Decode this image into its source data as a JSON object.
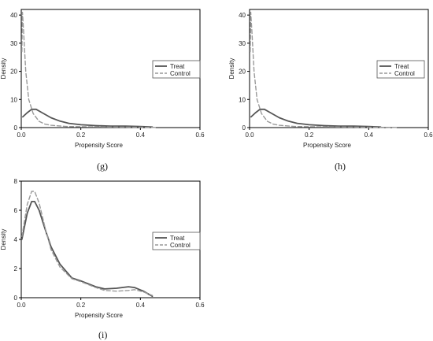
{
  "chart_data": [
    {
      "id": "g",
      "type": "line",
      "caption": "(g)",
      "xlabel": "Propensity Score",
      "ylabel": "Density",
      "xlim": [
        0,
        0.6
      ],
      "ylim": [
        0,
        42
      ],
      "xticks": [
        "0.0",
        "0.2",
        "0.4",
        "0.6"
      ],
      "yticks": [
        "0",
        "10",
        "20",
        "30",
        "40"
      ],
      "legend_position": "right",
      "series": [
        {
          "name": "Treat",
          "style": "solid",
          "color": "#555555",
          "points": [
            [
              0.005,
              3.8
            ],
            [
              0.02,
              5.3
            ],
            [
              0.035,
              6.5
            ],
            [
              0.05,
              6.5
            ],
            [
              0.07,
              5.3
            ],
            [
              0.1,
              3.5
            ],
            [
              0.13,
              2.3
            ],
            [
              0.16,
              1.5
            ],
            [
              0.2,
              1.0
            ],
            [
              0.25,
              0.7
            ],
            [
              0.3,
              0.5
            ],
            [
              0.35,
              0.5
            ],
            [
              0.4,
              0.4
            ],
            [
              0.44,
              0.2
            ]
          ]
        },
        {
          "name": "Control",
          "style": "dashed",
          "color": "#999999",
          "points": [
            [
              0.002,
              27
            ],
            [
              0.004,
              41
            ],
            [
              0.008,
              34
            ],
            [
              0.015,
              20
            ],
            [
              0.025,
              10
            ],
            [
              0.04,
              5
            ],
            [
              0.06,
              2.2
            ],
            [
              0.08,
              1.2
            ],
            [
              0.1,
              0.8
            ],
            [
              0.15,
              0.4
            ],
            [
              0.2,
              0.3
            ],
            [
              0.3,
              0.2
            ],
            [
              0.4,
              0.1
            ],
            [
              0.45,
              0.05
            ]
          ]
        }
      ]
    },
    {
      "id": "h",
      "type": "line",
      "caption": "(h)",
      "xlabel": "Propensity Score",
      "ylabel": "Density",
      "xlim": [
        0,
        0.6
      ],
      "ylim": [
        0,
        42
      ],
      "xticks": [
        "0.0",
        "0.2",
        "0.4",
        "0.6"
      ],
      "yticks": [
        "0",
        "10",
        "20",
        "30",
        "40"
      ],
      "legend_position": "right",
      "series": [
        {
          "name": "Treat",
          "style": "solid",
          "color": "#555555",
          "points": [
            [
              0.005,
              3.8
            ],
            [
              0.02,
              5.3
            ],
            [
              0.035,
              6.5
            ],
            [
              0.05,
              6.5
            ],
            [
              0.07,
              5.3
            ],
            [
              0.1,
              3.5
            ],
            [
              0.13,
              2.3
            ],
            [
              0.16,
              1.5
            ],
            [
              0.2,
              1.0
            ],
            [
              0.25,
              0.7
            ],
            [
              0.3,
              0.5
            ],
            [
              0.35,
              0.5
            ],
            [
              0.4,
              0.4
            ],
            [
              0.44,
              0.2
            ]
          ]
        },
        {
          "name": "Control",
          "style": "dashed",
          "color": "#999999",
          "points": [
            [
              0.002,
              27
            ],
            [
              0.004,
              41
            ],
            [
              0.008,
              34
            ],
            [
              0.015,
              20
            ],
            [
              0.025,
              10
            ],
            [
              0.04,
              5
            ],
            [
              0.06,
              2.2
            ],
            [
              0.08,
              1.2
            ],
            [
              0.1,
              0.8
            ],
            [
              0.15,
              0.4
            ],
            [
              0.2,
              0.3
            ],
            [
              0.3,
              0.2
            ],
            [
              0.4,
              0.1
            ],
            [
              0.5,
              0.05
            ]
          ]
        }
      ]
    },
    {
      "id": "i",
      "type": "line",
      "caption": "(i)",
      "xlabel": "Propensity Score",
      "ylabel": "Density",
      "xlim": [
        0,
        0.6
      ],
      "ylim": [
        0,
        8
      ],
      "xticks": [
        "0.0",
        "0.2",
        "0.4",
        "0.6"
      ],
      "yticks": [
        "0",
        "2",
        "4",
        "6",
        "8"
      ],
      "legend_position": "right",
      "series": [
        {
          "name": "Treat",
          "style": "solid",
          "color": "#555555",
          "points": [
            [
              0.002,
              4.0
            ],
            [
              0.02,
              5.8
            ],
            [
              0.035,
              6.6
            ],
            [
              0.045,
              6.6
            ],
            [
              0.06,
              6.0
            ],
            [
              0.08,
              4.7
            ],
            [
              0.1,
              3.5
            ],
            [
              0.13,
              2.3
            ],
            [
              0.17,
              1.35
            ],
            [
              0.2,
              1.15
            ],
            [
              0.25,
              0.75
            ],
            [
              0.28,
              0.6
            ],
            [
              0.32,
              0.65
            ],
            [
              0.36,
              0.75
            ],
            [
              0.38,
              0.7
            ],
            [
              0.41,
              0.45
            ],
            [
              0.44,
              0.1
            ]
          ]
        },
        {
          "name": "Control",
          "style": "dashed",
          "color": "#999999",
          "points": [
            [
              0.002,
              4.2
            ],
            [
              0.02,
              6.4
            ],
            [
              0.035,
              7.3
            ],
            [
              0.045,
              7.3
            ],
            [
              0.06,
              6.5
            ],
            [
              0.08,
              4.8
            ],
            [
              0.1,
              3.3
            ],
            [
              0.13,
              2.1
            ],
            [
              0.17,
              1.3
            ],
            [
              0.2,
              1.1
            ],
            [
              0.25,
              0.7
            ],
            [
              0.28,
              0.5
            ],
            [
              0.32,
              0.45
            ],
            [
              0.36,
              0.5
            ],
            [
              0.38,
              0.55
            ],
            [
              0.41,
              0.4
            ],
            [
              0.44,
              0.15
            ]
          ]
        }
      ]
    }
  ]
}
